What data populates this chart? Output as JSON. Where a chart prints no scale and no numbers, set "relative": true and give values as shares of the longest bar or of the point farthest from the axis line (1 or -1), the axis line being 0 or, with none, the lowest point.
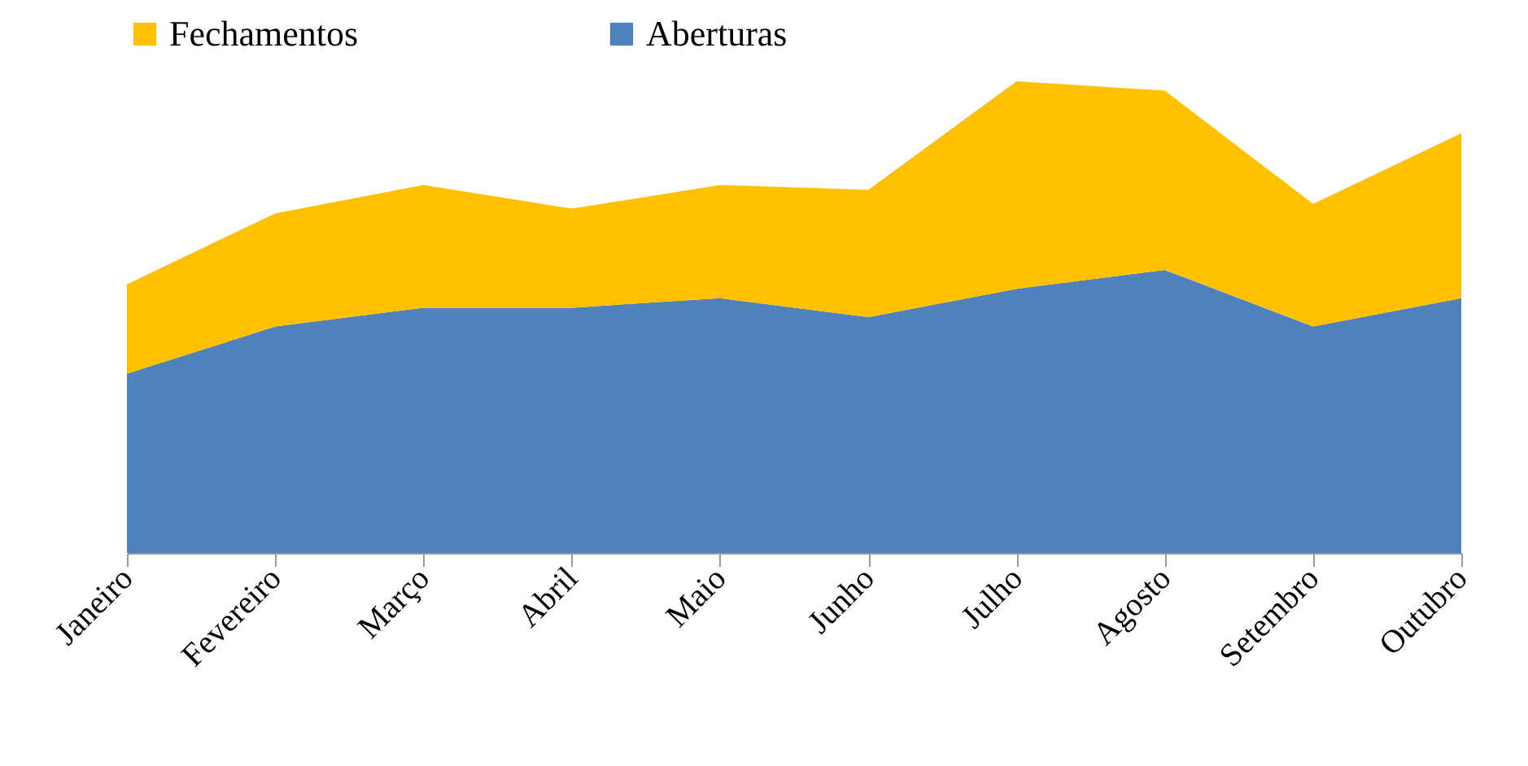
{
  "chart_data": {
    "type": "area",
    "relative": true,
    "stacked": true,
    "legend": "top",
    "categories": [
      "Janeiro",
      "Fevereiro",
      "Março",
      "Abril",
      "Maio",
      "Junho",
      "Julho",
      "Agosto",
      "Setembro",
      "Outubro"
    ],
    "series": [
      {
        "name": "Aberturas",
        "color": "#4f81bd",
        "values": [
          0.38,
          0.48,
          0.52,
          0.52,
          0.54,
          0.5,
          0.56,
          0.6,
          0.48,
          0.54
        ]
      },
      {
        "name": "Fechamentos",
        "color": "#ffc000",
        "values": [
          0.19,
          0.24,
          0.26,
          0.21,
          0.24,
          0.27,
          0.44,
          0.38,
          0.26,
          0.35
        ]
      }
    ]
  }
}
